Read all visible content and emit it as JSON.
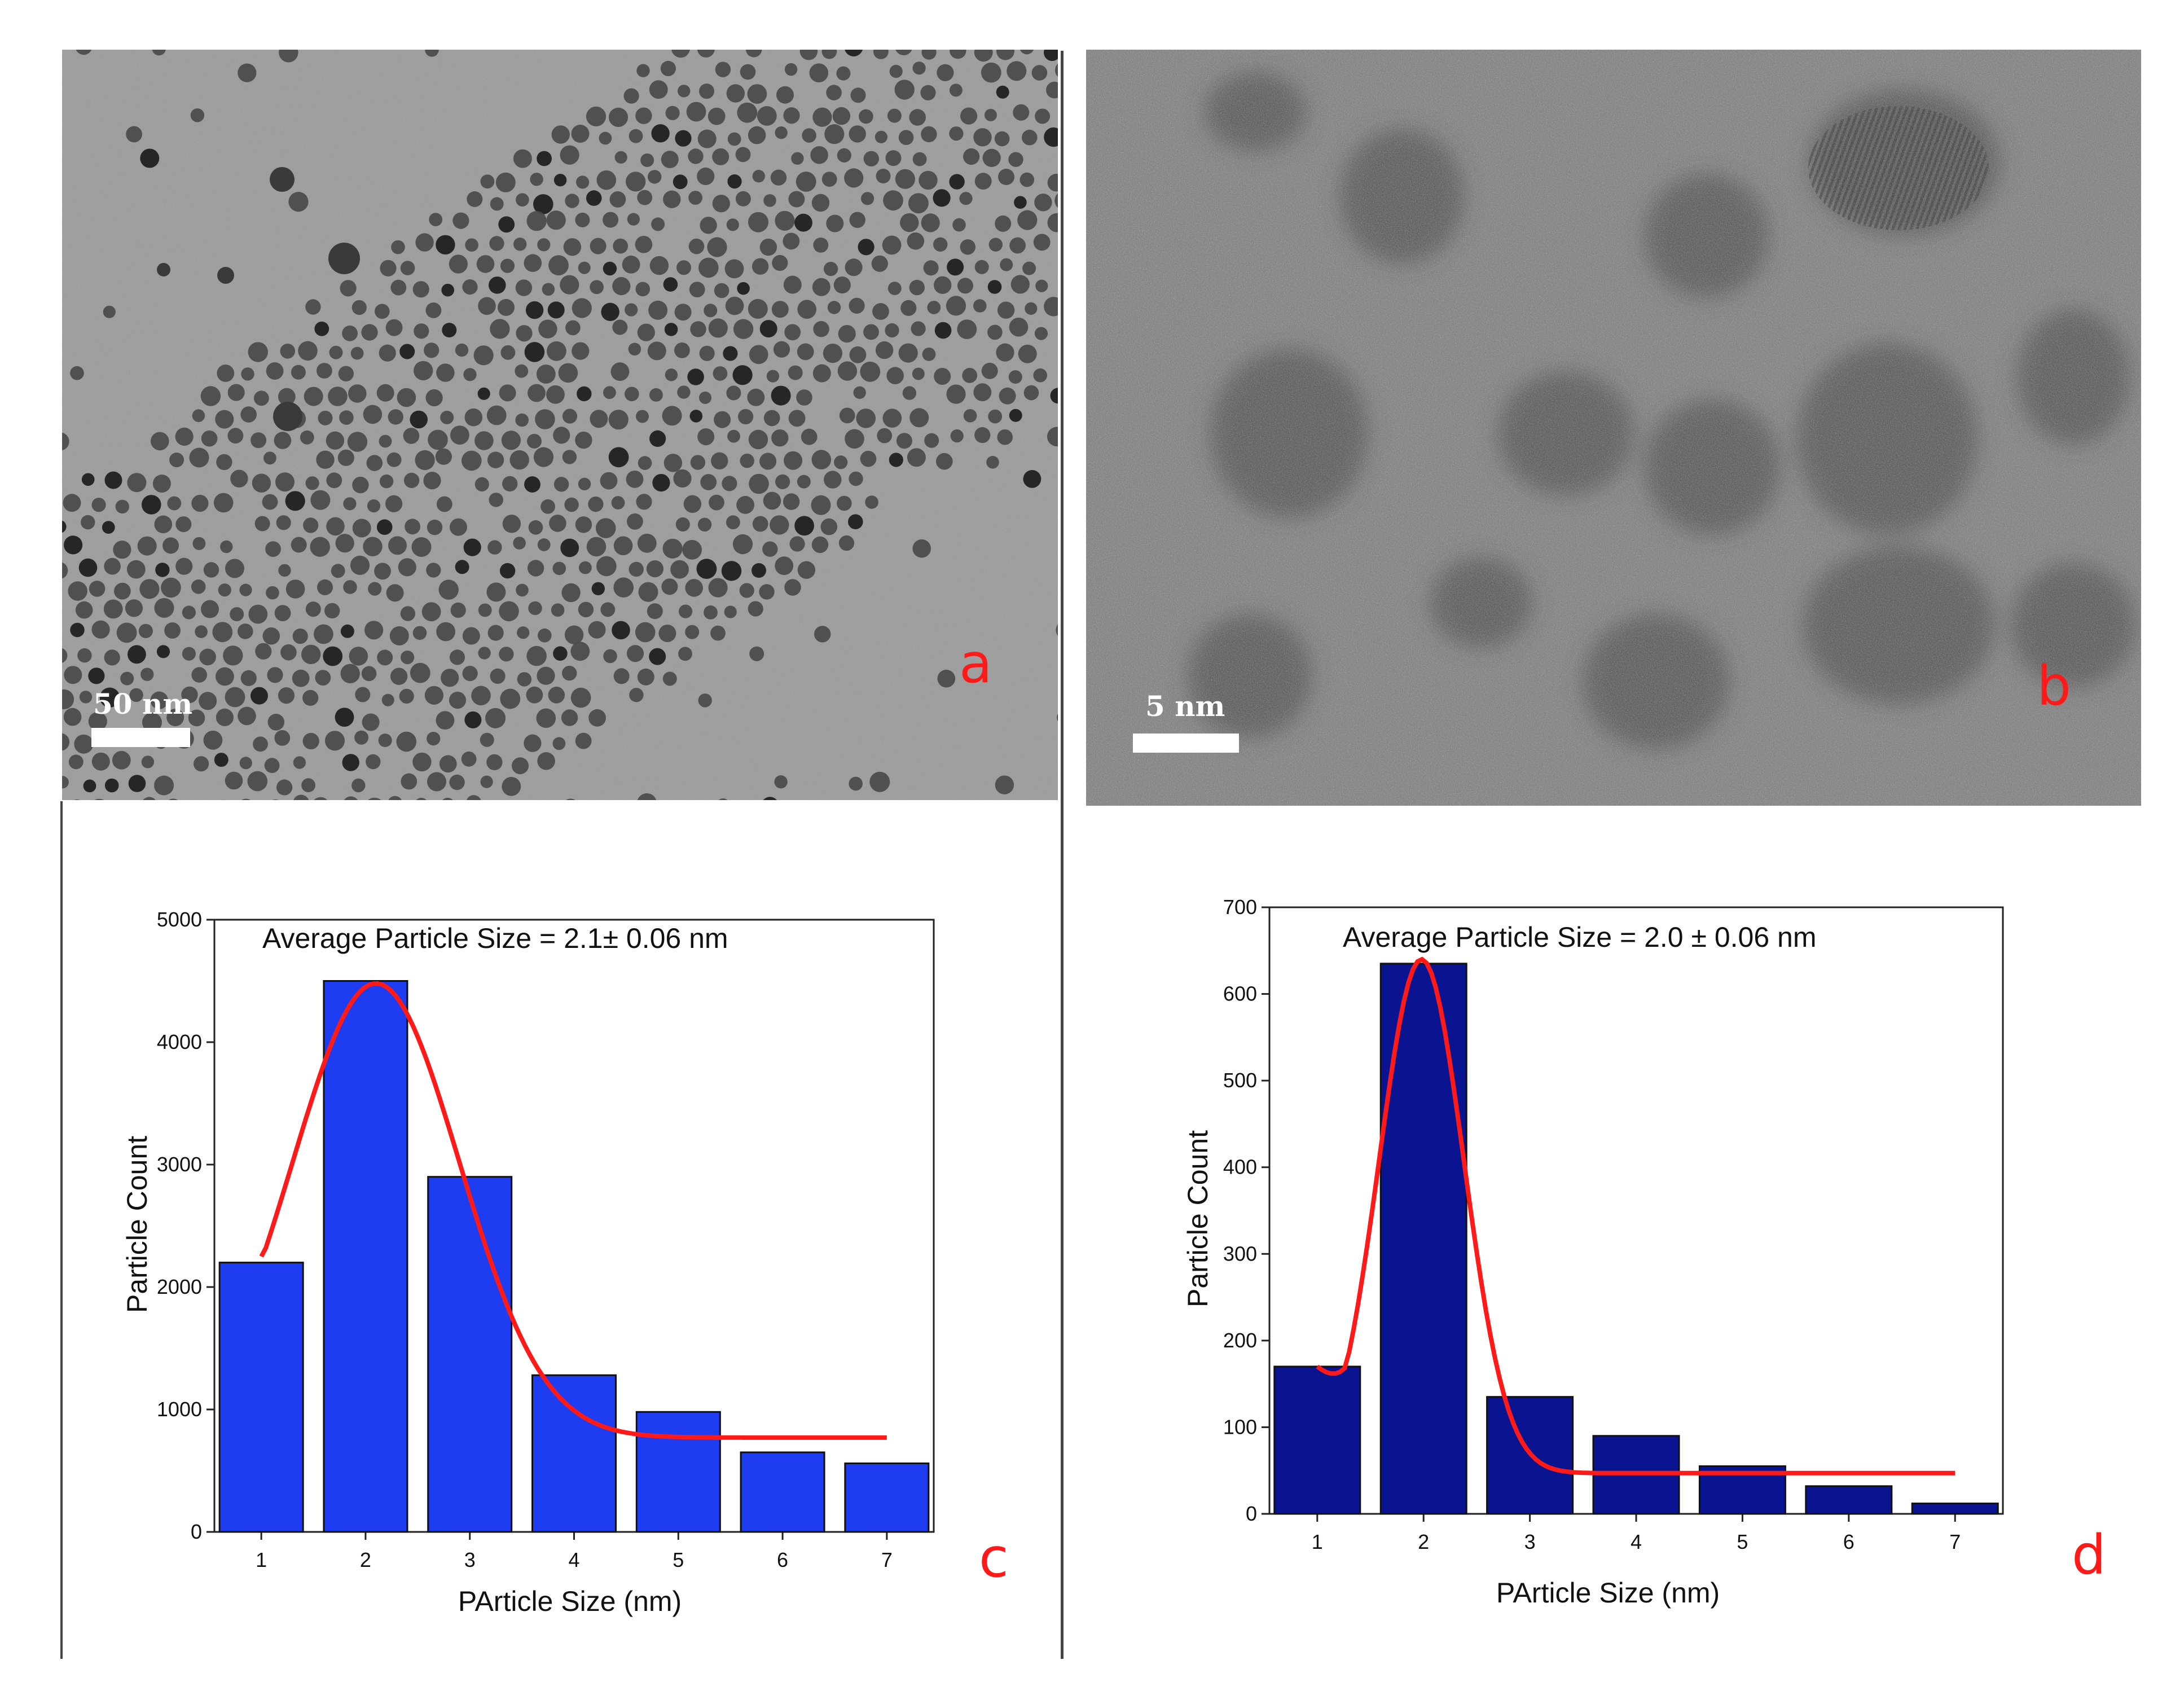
{
  "figure": {
    "panels": {
      "a": {
        "letter": "a",
        "scale_bar_label": "50 nm",
        "kind": "TEM micrograph, low magnification"
      },
      "b": {
        "letter": "b",
        "scale_bar_label": "5 nm",
        "kind": "HRTEM micrograph"
      },
      "c": {
        "letter": "c"
      },
      "d": {
        "letter": "d"
      }
    },
    "colors": {
      "letter": "#ff1a1a",
      "bars_c": "#1e3cf0",
      "bars_d": "#0a1490",
      "fit_line": "#ff1a1a",
      "tem_a_background": "#9a9a9a",
      "tem_b_background": "#7e7e7e"
    }
  },
  "chart_data": [
    {
      "type": "bar",
      "panel": "c",
      "annotation": "Average Particle Size = 2.1± 0.06 nm",
      "xlabel": "PArticle Size (nm)",
      "ylabel": "Particle Count",
      "categories": [
        "1",
        "2",
        "3",
        "4",
        "5",
        "6",
        "7"
      ],
      "x": [
        1,
        2,
        3,
        4,
        5,
        6,
        7
      ],
      "values": [
        2200,
        4500,
        2900,
        1280,
        980,
        650,
        560
      ],
      "xlim": [
        0.55,
        7.45
      ],
      "ylim": [
        0,
        5000
      ],
      "yticks": [
        0,
        1000,
        2000,
        3000,
        4000,
        5000
      ],
      "fit": {
        "type": "line",
        "peak_x": 2.1,
        "peak_y": 4480,
        "baseline": 770,
        "sigma": 0.8,
        "x_range": [
          1,
          7
        ],
        "start_y": 2250
      }
    },
    {
      "type": "bar",
      "panel": "d",
      "annotation": "Average Particle Size = 2.0 ± 0.06 nm",
      "xlabel": "PArticle Size (nm)",
      "ylabel": "Particle Count",
      "categories": [
        "1",
        "2",
        "3",
        "4",
        "5",
        "6",
        "7"
      ],
      "x": [
        1,
        2,
        3,
        4,
        5,
        6,
        7
      ],
      "values": [
        170,
        635,
        135,
        90,
        55,
        32,
        12
      ],
      "xlim": [
        0.55,
        7.45
      ],
      "ylim": [
        0,
        700
      ],
      "yticks": [
        0,
        100,
        200,
        300,
        400,
        500,
        600,
        700
      ],
      "fit": {
        "type": "line",
        "peak_x": 1.98,
        "peak_y": 640,
        "baseline": 47,
        "sigma": 0.4,
        "x_range": [
          1,
          7
        ],
        "start_y": 170
      }
    }
  ]
}
